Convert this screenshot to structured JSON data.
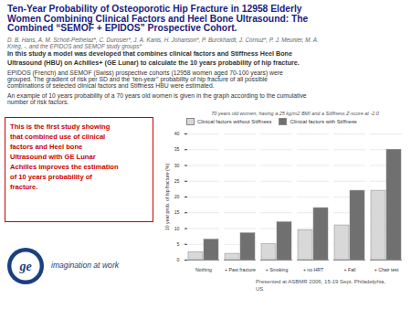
{
  "chart_data": {
    "type": "bar",
    "title": "Ten-Year Probability of Osteoporotic Hip Fracture in 12958 Elderly\nWomen Combining Clinical Factors and Heel Bone Ultrasound: The\nCombined “SEMOF + EPIDOS” Prospective Cohort.",
    "subtitle": "70 years old women, having a 25 kg/m2 BMI and a Stiffness Z-score at -2.0",
    "annotations": [
      "D. B. Hans, A. M. Schott-Pethelaz*, C. Durosier*, J. A. Kanis, H. Johanson*, P. Burckhardt, J. Cornuz*, P. J. Meunier, M. A.",
      "Krieg, -, and the EPIDOS and SEMOF study groups*",
      "In this study a model was developed that combines clinical factors and Stiffness Heel Bone\nUltrasound (HBU) on Achilles+ (GE Lunar) to calculate the 10 years probability of hip fracture.",
      "EPIDOS (French) and SEMOF (Swiss) prospective cohorts (12958 women aged 70-100 years) were",
      "grouped. The gradient of risk per SD and the ‘ten-year’’ probability of hip fracture of all possible",
      "combinations of selected clinical factors and Stiffness HBU were estimated.",
      "An example of 10 years probability of a 70 years old women is given in the graph according to the cumulative",
      "number of risk factors.",
      "This is the first study showing\nthat combined use of clinical\nfactors and Heel bone\nUltrasound with GE Lunar\nAchilles improves the estimation\nof 10 years probability of\nfracture.",
      "ge",
      "imagination at work",
      "Presented at ASBMR 2006, 15-19 Sept. Philadelphia,\nUS"
    ],
    "categories": [
      "Nothing",
      "+ Past fracture",
      "+ Smoking",
      "+ no HRT",
      "+ Fall",
      "+ Chair test"
    ],
    "series": [
      {
        "name": "Clinical factors without Stiffness",
        "color": "#d8d8d8",
        "values": [
          2.5,
          2.0,
          5.0,
          9.5,
          11.0,
          22.0
        ]
      },
      {
        "name": "Clinical factors with Stiffness",
        "color": "#707070",
        "values": [
          6.5,
          8.5,
          12.0,
          16.5,
          22.0,
          35.0
        ]
      }
    ],
    "ylabel": "10 year prob. of hip fracture (%)",
    "ylim": [
      0,
      40
    ],
    "yticks": [
      0,
      5,
      10,
      15,
      20,
      25,
      30,
      35,
      40
    ],
    "grid": true,
    "legend": "upper left"
  }
}
